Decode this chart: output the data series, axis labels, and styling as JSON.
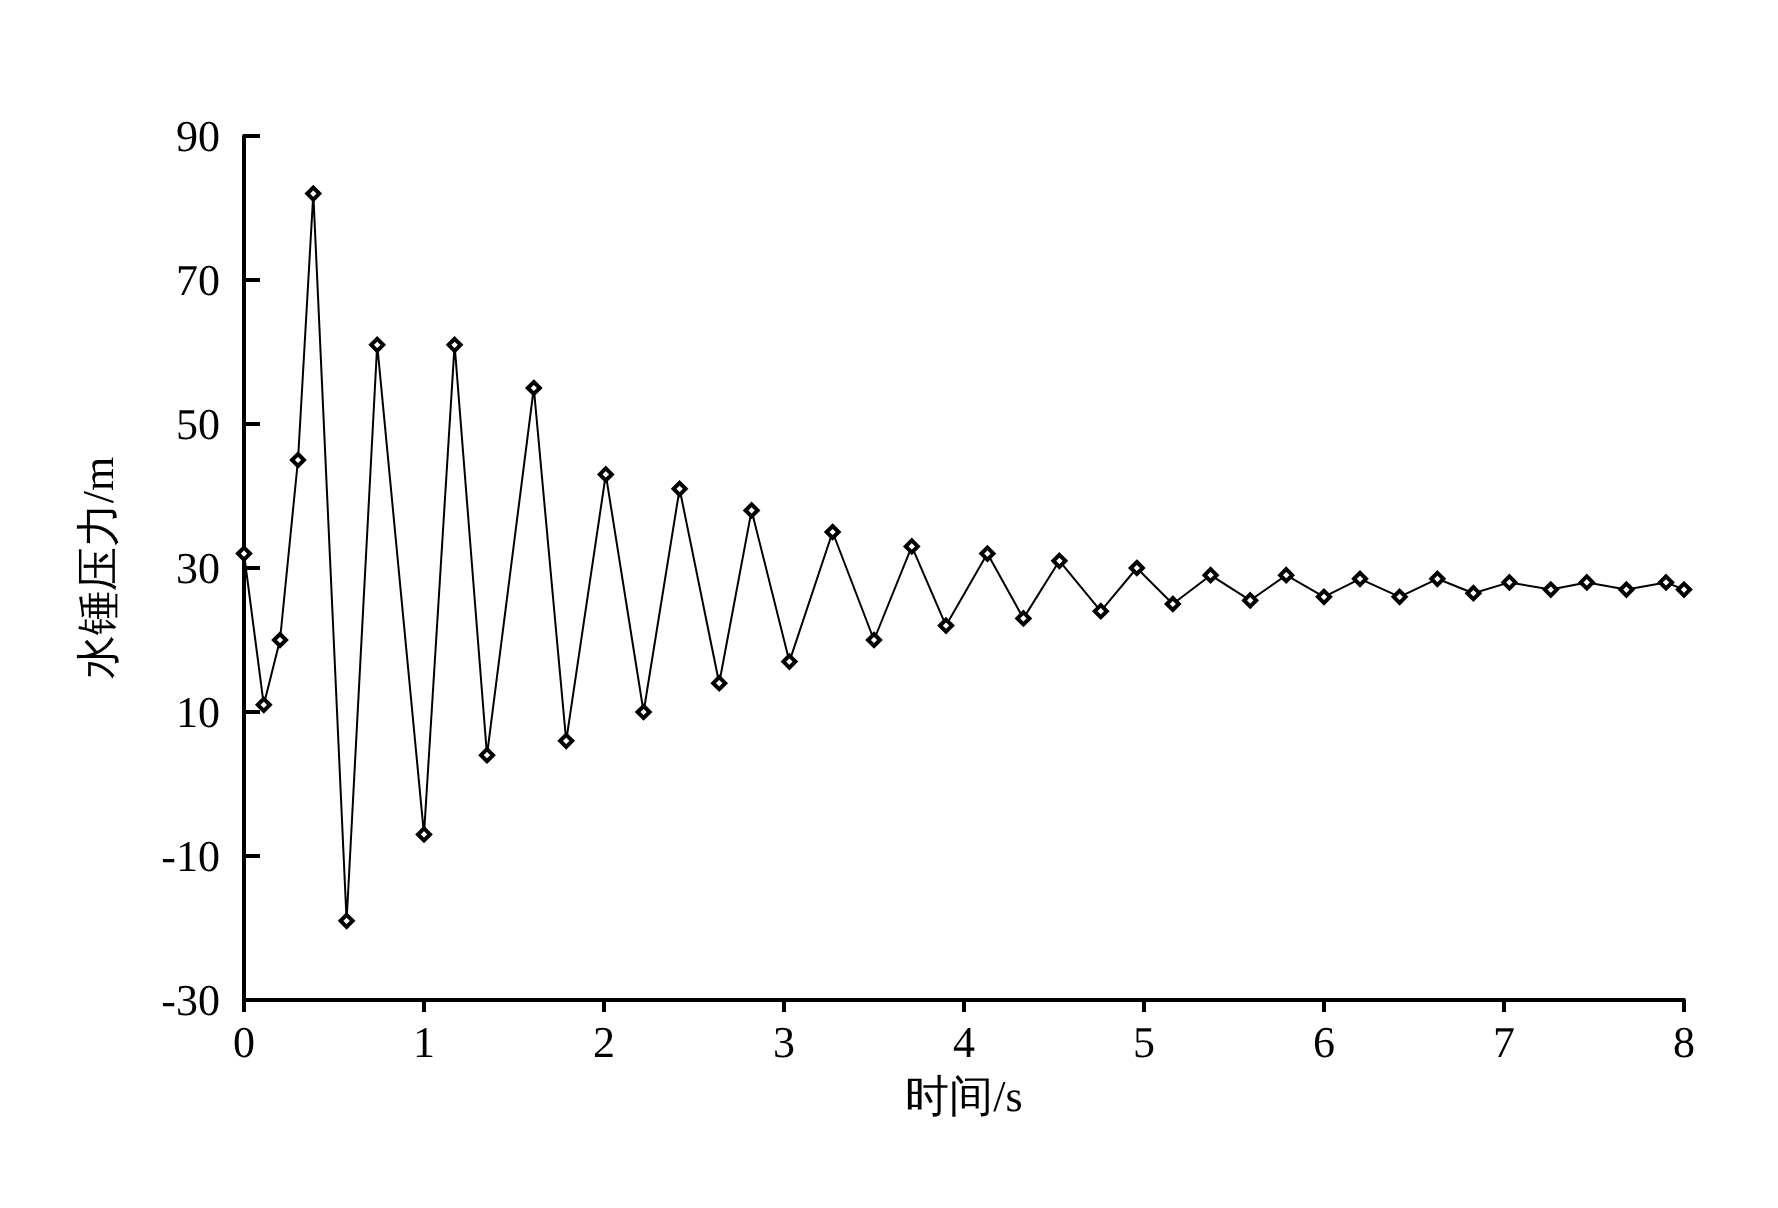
{
  "chart_data": {
    "type": "line",
    "xlabel": "时间/s",
    "ylabel": "水锤压力/m",
    "xlim": [
      0,
      8
    ],
    "xticks": [
      0,
      1,
      2,
      3,
      4,
      5,
      6,
      7,
      8
    ],
    "ylim": [
      -30,
      90
    ],
    "yticks": [
      -30,
      -10,
      10,
      30,
      50,
      70,
      90
    ],
    "marker": "diamond",
    "line_style": "solid",
    "series": [
      {
        "color": "#000000",
        "x": [
          0,
          0.11,
          0.2,
          0.3,
          0.385,
          0.57,
          0.74,
          1.0,
          1.17,
          1.35,
          1.61,
          1.79,
          2.01,
          2.22,
          2.42,
          2.64,
          2.82,
          3.03,
          3.27,
          3.5,
          3.71,
          3.9,
          4.13,
          4.33,
          4.53,
          4.76,
          4.96,
          5.16,
          5.37,
          5.59,
          5.79,
          6.0,
          6.2,
          6.42,
          6.63,
          6.83,
          7.03,
          7.26,
          7.46,
          7.68,
          7.9,
          8.0
        ],
        "values": [
          32,
          11,
          20,
          45,
          82,
          -19,
          61,
          -7,
          61,
          4,
          55,
          6,
          43,
          10,
          41,
          14,
          38,
          17,
          35,
          20,
          33,
          22,
          32,
          23,
          31,
          24,
          30,
          25,
          29,
          25.5,
          29,
          26,
          28.5,
          26,
          28.5,
          26.5,
          28,
          27,
          28,
          27,
          28,
          27
        ]
      }
    ]
  }
}
